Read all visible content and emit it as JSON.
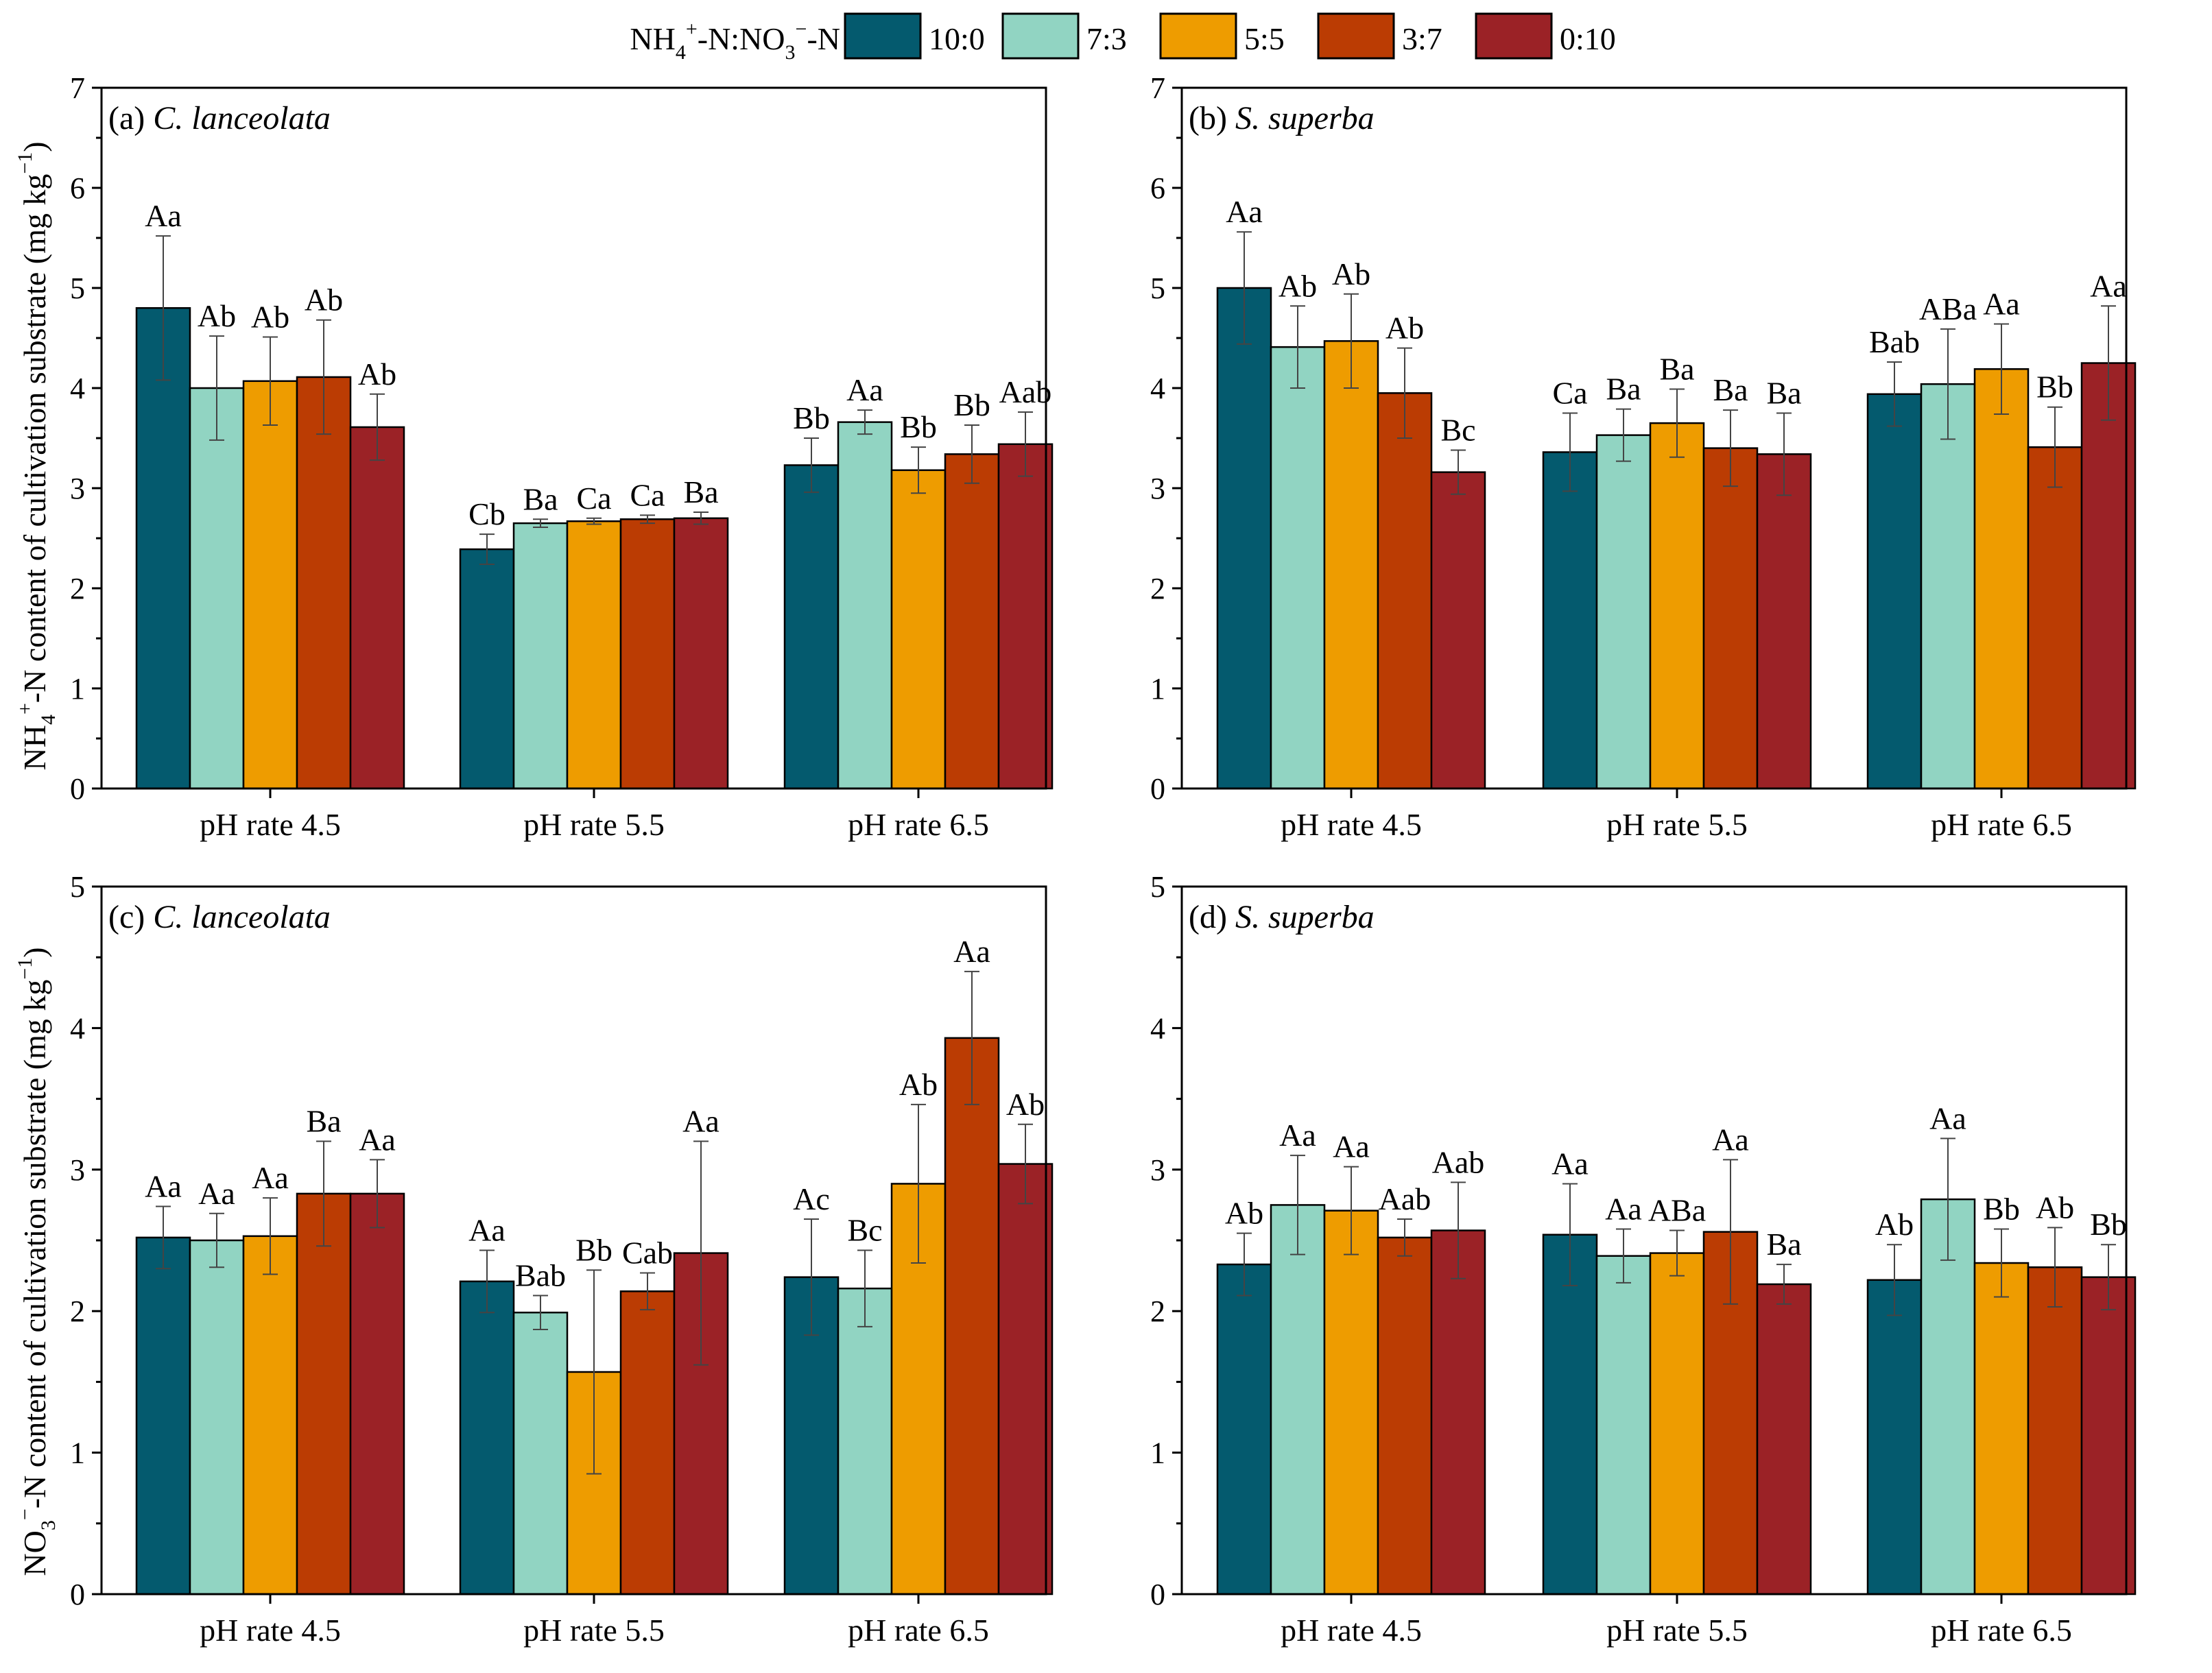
{
  "chart_data": {
    "type": "bar",
    "legend": {
      "title_main": "NH",
      "title_sub1": "4",
      "title_sup1": "+",
      "title_mid": "-N:NO",
      "title_sub2": "3",
      "title_sup2": "−",
      "title_end": "-N",
      "placement": "top-center",
      "entries": [
        "10:0",
        "7:3",
        "5:5",
        "3:7",
        "0:10"
      ]
    },
    "series_colors": [
      "#045a6e",
      "#91d4c2",
      "#ee9c00",
      "#bb3c03",
      "#9b2226"
    ],
    "categories": [
      "pH rate 4.5",
      "pH rate 5.5",
      "pH rate 6.5"
    ],
    "y_axis_top": {
      "prefix": "NH",
      "sub": "4",
      "sup": "+",
      "text": "-N content of cultivation substrate (mg kg",
      "unit_sup": "−1",
      "close": ")"
    },
    "y_axis_bottom": {
      "prefix": "NO",
      "sub": "3",
      "sup": "−",
      "text": "-N content of cultivation substrate (mg kg",
      "unit_sup": "−1",
      "close": ")"
    },
    "panels": [
      {
        "label": "(a)",
        "species": "C. lanceolata",
        "ylim": [
          0,
          7
        ],
        "yticks": [
          "0",
          "1",
          "2",
          "3",
          "4",
          "5",
          "6",
          "7"
        ],
        "values": [
          [
            4.8,
            4.0,
            4.07,
            4.11,
            3.61
          ],
          [
            2.39,
            2.65,
            2.67,
            2.69,
            2.7
          ],
          [
            3.23,
            3.66,
            3.18,
            3.34,
            3.44
          ]
        ],
        "errors": [
          [
            0.72,
            0.52,
            0.44,
            0.57,
            0.33
          ],
          [
            0.15,
            0.04,
            0.03,
            0.04,
            0.06
          ],
          [
            0.27,
            0.12,
            0.23,
            0.29,
            0.32
          ]
        ],
        "letters": [
          [
            "Aa",
            "Ab",
            "Ab",
            "Ab",
            "Ab"
          ],
          [
            "Cb",
            "Ba",
            "Ca",
            "Ca",
            "Ba"
          ],
          [
            "Bb",
            "Aa",
            "Bb",
            "Bb",
            "Aab"
          ]
        ]
      },
      {
        "label": "(b)",
        "species": "S. superba",
        "ylim": [
          0,
          7
        ],
        "yticks": [
          "0",
          "1",
          "2",
          "3",
          "4",
          "5",
          "6",
          "7"
        ],
        "values": [
          [
            5.0,
            4.41,
            4.47,
            3.95,
            3.16
          ],
          [
            3.36,
            3.53,
            3.65,
            3.4,
            3.34
          ],
          [
            3.94,
            4.04,
            4.19,
            3.41,
            4.25
          ]
        ],
        "errors": [
          [
            0.56,
            0.41,
            0.47,
            0.45,
            0.22
          ],
          [
            0.39,
            0.26,
            0.34,
            0.38,
            0.41
          ],
          [
            0.32,
            0.55,
            0.45,
            0.4,
            0.57
          ]
        ],
        "letters": [
          [
            "Aa",
            "Ab",
            "Ab",
            "Ab",
            "Bc"
          ],
          [
            "Ca",
            "Ba",
            "Ba",
            "Ba",
            "Ba"
          ],
          [
            "Bab",
            "ABa",
            "Aa",
            "Bb",
            "Aa"
          ]
        ]
      },
      {
        "label": "(c)",
        "species": "C. lanceolata",
        "ylim": [
          0,
          5
        ],
        "yticks": [
          "0",
          "1",
          "2",
          "3",
          "4",
          "5"
        ],
        "values": [
          [
            2.52,
            2.5,
            2.53,
            2.83,
            2.83
          ],
          [
            2.21,
            1.99,
            1.57,
            2.14,
            2.41
          ],
          [
            2.24,
            2.16,
            2.9,
            3.93,
            3.04
          ]
        ],
        "errors": [
          [
            0.22,
            0.19,
            0.27,
            0.37,
            0.24
          ],
          [
            0.22,
            0.12,
            0.72,
            0.13,
            0.79
          ],
          [
            0.41,
            0.27,
            0.56,
            0.47,
            0.28
          ]
        ],
        "letters": [
          [
            "Aa",
            "Aa",
            "Aa",
            "Ba",
            "Aa"
          ],
          [
            "Aa",
            "Bab",
            "Bb",
            "Cab",
            "Aa"
          ],
          [
            "Ac",
            "Bc",
            "Ab",
            "Aa",
            "Ab"
          ]
        ]
      },
      {
        "label": "(d)",
        "species": "S. superba",
        "ylim": [
          0,
          5
        ],
        "yticks": [
          "0",
          "1",
          "2",
          "3",
          "4",
          "5"
        ],
        "values": [
          [
            2.33,
            2.75,
            2.71,
            2.52,
            2.57
          ],
          [
            2.54,
            2.39,
            2.41,
            2.56,
            2.19
          ],
          [
            2.22,
            2.79,
            2.34,
            2.31,
            2.24
          ]
        ],
        "errors": [
          [
            0.22,
            0.35,
            0.31,
            0.13,
            0.34
          ],
          [
            0.36,
            0.19,
            0.16,
            0.51,
            0.14
          ],
          [
            0.25,
            0.43,
            0.24,
            0.28,
            0.23
          ]
        ],
        "letters": [
          [
            "Ab",
            "Aa",
            "Aa",
            "Aab",
            "Aab"
          ],
          [
            "Aa",
            "Aa",
            "ABa",
            "Aa",
            "Ba"
          ],
          [
            "Ab",
            "Aa",
            "Bb",
            "Ab",
            "Bb"
          ]
        ]
      }
    ]
  }
}
